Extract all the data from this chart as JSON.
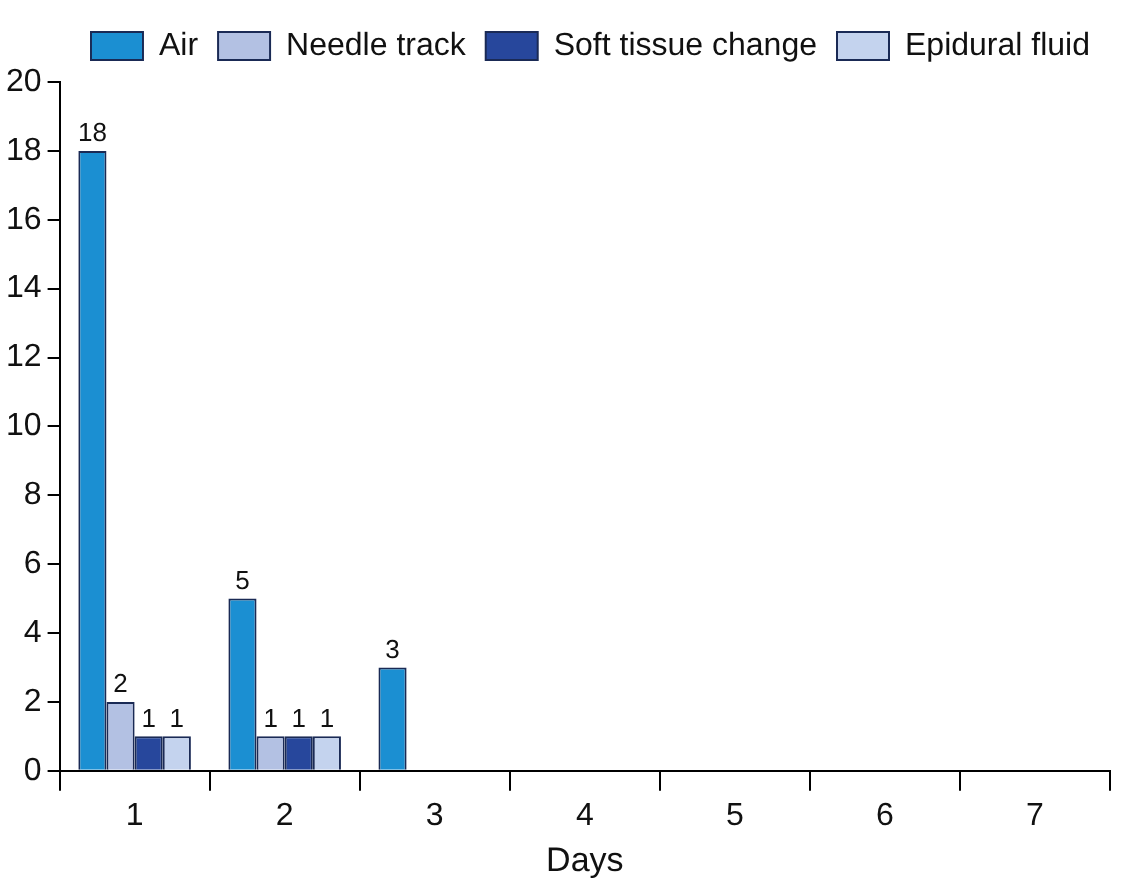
{
  "chart_data": {
    "type": "bar",
    "xlabel": "Days",
    "categories": [
      "1",
      "2",
      "3",
      "4",
      "5",
      "6",
      "7"
    ],
    "series": [
      {
        "name": "Air",
        "color": "#1b8fd2",
        "values": [
          18,
          5,
          3,
          null,
          null,
          null,
          null
        ]
      },
      {
        "name": "Needle track",
        "color": "#b3c1e3",
        "values": [
          2,
          1,
          null,
          null,
          null,
          null,
          null
        ]
      },
      {
        "name": "Soft tissue change",
        "color": "#27479c",
        "values": [
          1,
          1,
          null,
          null,
          null,
          null,
          null
        ]
      },
      {
        "name": "Epidural fluid",
        "color": "#c4d3ee",
        "values": [
          1,
          1,
          null,
          null,
          null,
          null,
          null
        ]
      }
    ],
    "ylim": [
      0,
      20
    ],
    "yticks": [
      0,
      2,
      4,
      6,
      8,
      10,
      12,
      14,
      16,
      18,
      20
    ],
    "grid": false,
    "legend": "top right",
    "data_labels": true
  }
}
